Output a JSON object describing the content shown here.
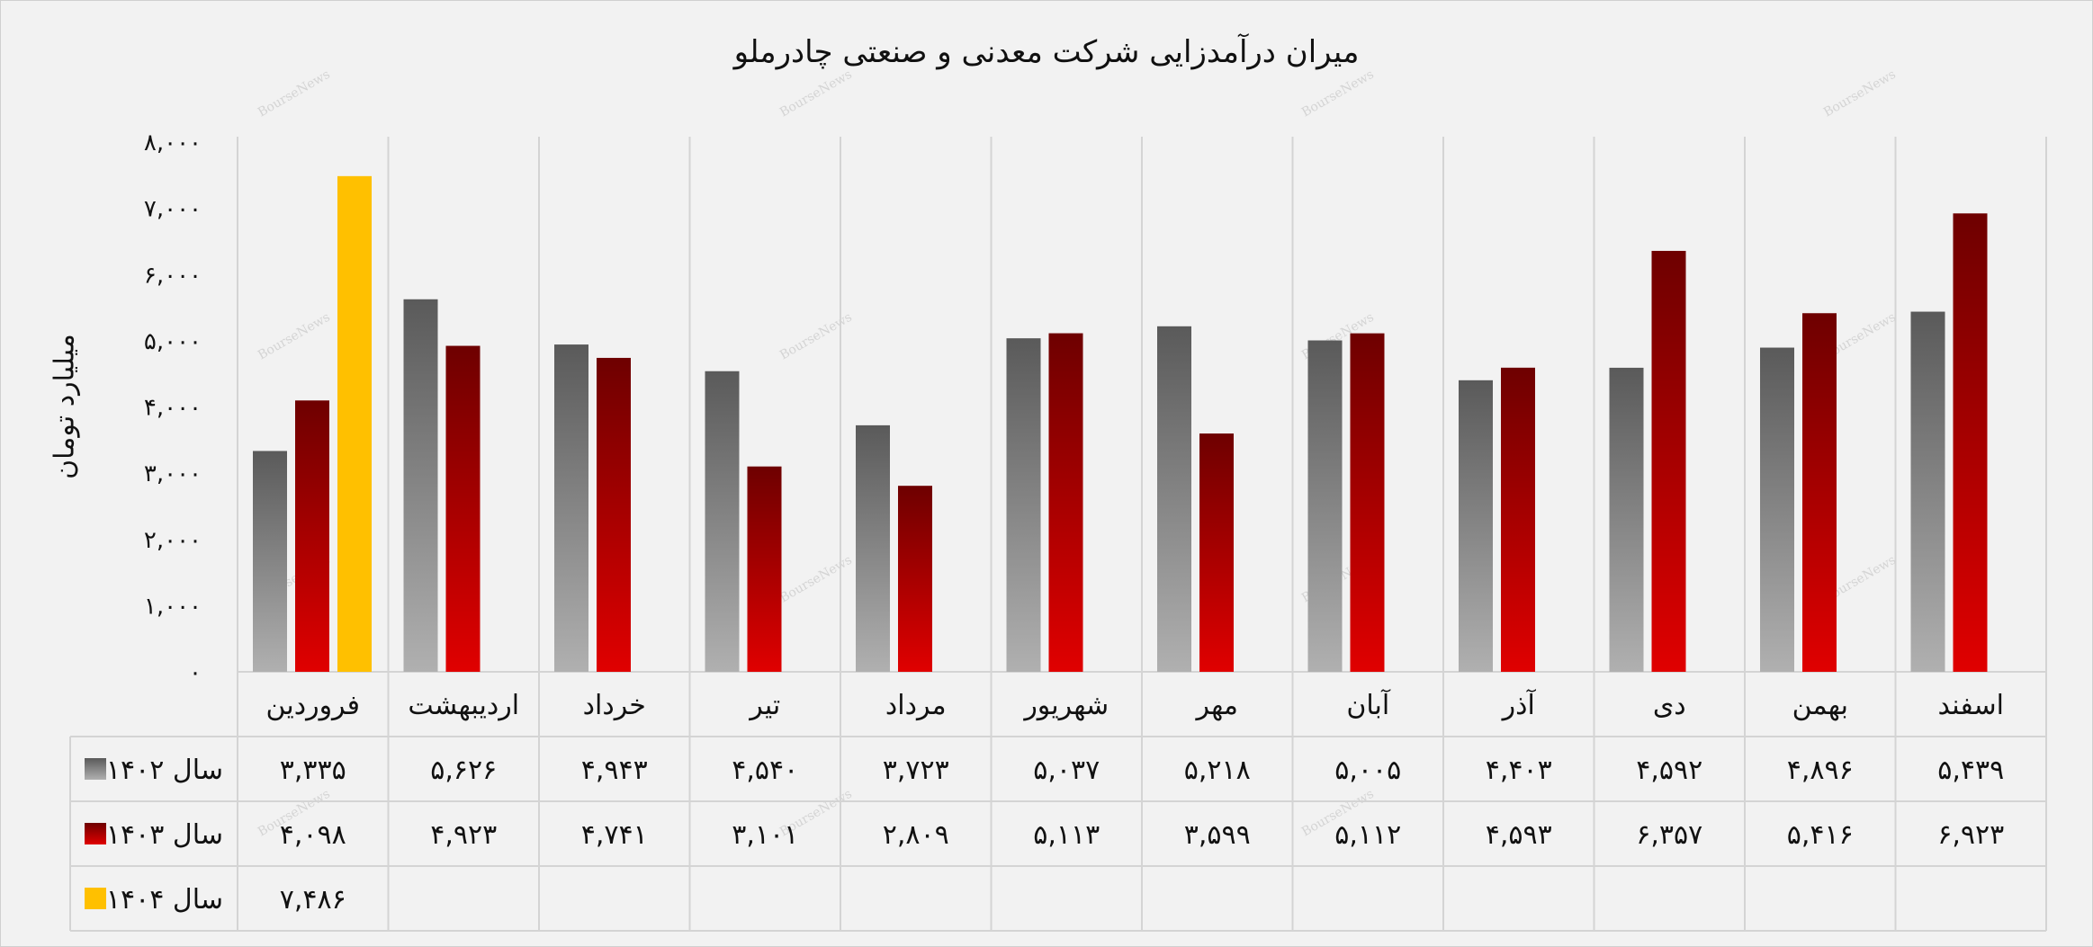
{
  "chart_data": {
    "type": "bar",
    "title": "میران درآمدزایی شرکت معدنی و صنعتی چادرملو",
    "ylabel": "میلیارد تومان",
    "ylim": [
      0,
      8000
    ],
    "y_ticks": [
      "۰",
      "۱,۰۰۰",
      "۲,۰۰۰",
      "۳,۰۰۰",
      "۴,۰۰۰",
      "۵,۰۰۰",
      "۶,۰۰۰",
      "۷,۰۰۰",
      "۸,۰۰۰"
    ],
    "y_tick_values": [
      0,
      1000,
      2000,
      3000,
      4000,
      5000,
      6000,
      7000,
      8000
    ],
    "categories": [
      "فروردین",
      "اردیبهشت",
      "خرداد",
      "تیر",
      "مرداد",
      "شهریور",
      "مهر",
      "آبان",
      "آذر",
      "دی",
      "بهمن",
      "اسفند"
    ],
    "series": [
      {
        "name": "سال ۱۴۰۲",
        "color": "#8c8c8c",
        "values": [
          3335,
          5626,
          4943,
          4540,
          3723,
          5037,
          5218,
          5005,
          4403,
          4592,
          4896,
          5439
        ],
        "labels": [
          "۳,۳۳۵",
          "۵,۶۲۶",
          "۴,۹۴۳",
          "۴,۵۴۰",
          "۳,۷۲۳",
          "۵,۰۳۷",
          "۵,۲۱۸",
          "۵,۰۰۵",
          "۴,۴۰۳",
          "۴,۵۹۲",
          "۴,۸۹۶",
          "۵,۴۳۹"
        ]
      },
      {
        "name": "سال ۱۴۰۳",
        "color": "#b00000",
        "values": [
          4098,
          4923,
          4741,
          3101,
          2809,
          5113,
          3599,
          5112,
          4593,
          6357,
          5416,
          6923
        ],
        "labels": [
          "۴,۰۹۸",
          "۴,۹۲۳",
          "۴,۷۴۱",
          "۳,۱۰۱",
          "۲,۸۰۹",
          "۵,۱۱۳",
          "۳,۵۹۹",
          "۵,۱۱۲",
          "۴,۵۹۳",
          "۶,۳۵۷",
          "۵,۴۱۶",
          "۶,۹۲۳"
        ]
      },
      {
        "name": "سال ۱۴۰۴",
        "color": "#ffc000",
        "values": [
          7486,
          null,
          null,
          null,
          null,
          null,
          null,
          null,
          null,
          null,
          null,
          null
        ],
        "labels": [
          "۷,۴۸۶",
          "",
          "",
          "",
          "",
          "",
          "",
          "",
          "",
          "",
          "",
          ""
        ]
      }
    ],
    "grid": "vertical-category-separators",
    "legend": "data-table"
  },
  "watermark": "BourseNews"
}
